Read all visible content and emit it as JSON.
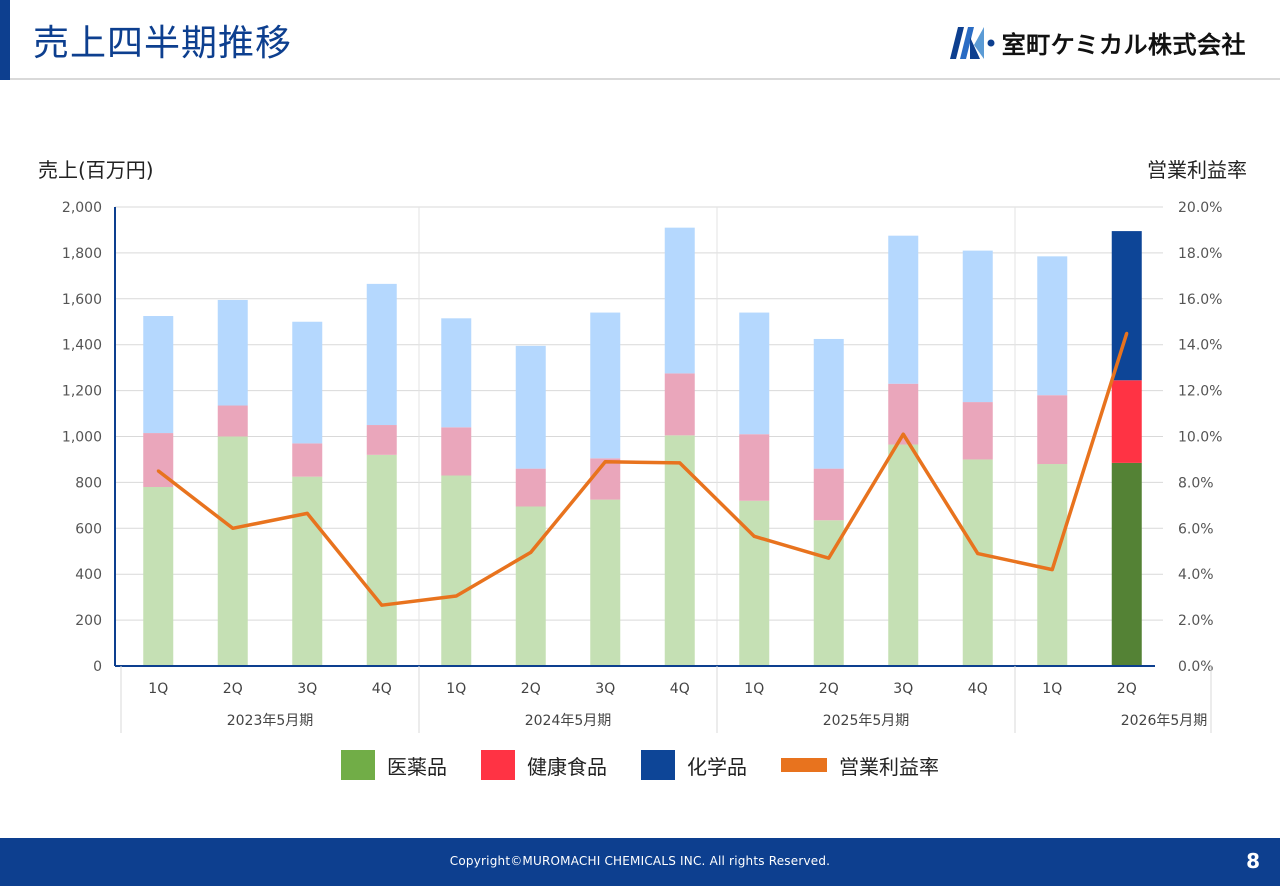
{
  "header": {
    "title": "売上四半期推移",
    "company_name": "室町ケミカル株式会社"
  },
  "footer": {
    "copyright": "Copyright©MUROMACHI CHEMICALS INC. All rights Reserved.",
    "page_number": "8"
  },
  "chart_data": {
    "type": "bar",
    "stacked": true,
    "left_axis_label": "売上(百万円)",
    "right_axis_label": "営業利益率",
    "ylim": [
      0,
      2000
    ],
    "y_ticks": [
      "0",
      "200",
      "400",
      "600",
      "800",
      "1,000",
      "1,200",
      "1,400",
      "1,600",
      "1,800",
      "2,000"
    ],
    "y2lim": [
      0,
      20
    ],
    "y2_ticks": [
      "0.0%",
      "2.0%",
      "4.0%",
      "6.0%",
      "8.0%",
      "10.0%",
      "12.0%",
      "14.0%",
      "16.0%",
      "18.0%",
      "20.0%"
    ],
    "grid": true,
    "categories": [
      "1Q",
      "2Q",
      "3Q",
      "4Q",
      "1Q",
      "2Q",
      "3Q",
      "4Q",
      "1Q",
      "2Q",
      "3Q",
      "4Q",
      "1Q",
      "2Q"
    ],
    "groups": [
      {
        "label": "2023年5月期",
        "count": 4
      },
      {
        "label": "2024年5月期",
        "count": 4
      },
      {
        "label": "2025年5月期",
        "count": 4
      },
      {
        "label": "2026年5月期",
        "count": 2
      }
    ],
    "highlight_index": 13,
    "series": [
      {
        "name": "医薬品",
        "color": "#71ad47",
        "faded_color": "#c5e0b4",
        "highlight_color": "#548235",
        "values": [
          780,
          1000,
          825,
          920,
          830,
          695,
          725,
          1005,
          720,
          635,
          965,
          900,
          880,
          885
        ]
      },
      {
        "name": "健康食品",
        "color": "#ff3344",
        "faded_color": "#eaa6bb",
        "highlight_color": "#ff3344",
        "values": [
          235,
          135,
          145,
          130,
          210,
          165,
          180,
          270,
          290,
          225,
          265,
          250,
          300,
          360
        ]
      },
      {
        "name": "化学品",
        "color": "#0d4597",
        "faded_color": "#b5d8fe",
        "highlight_color": "#0d4597",
        "values": [
          510,
          460,
          530,
          615,
          475,
          535,
          635,
          635,
          530,
          565,
          645,
          660,
          605,
          650
        ]
      }
    ],
    "line_series": {
      "name": "営業利益率",
      "color": "#e8731e",
      "values": [
        8.5,
        6.0,
        6.65,
        2.65,
        3.05,
        4.95,
        8.9,
        8.85,
        5.65,
        4.7,
        10.1,
        4.9,
        4.2,
        14.5
      ]
    },
    "legend_placement": "bottom"
  }
}
